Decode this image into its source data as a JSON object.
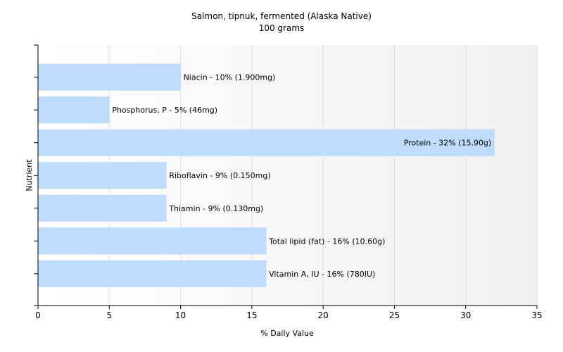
{
  "chart_data": {
    "type": "bar",
    "orientation": "horizontal",
    "title": "Salmon, tipnuk, fermented (Alaska Native)",
    "subtitle": "100 grams",
    "xlabel": "% Daily Value",
    "ylabel": "Nutrient",
    "xlim": [
      0,
      35
    ],
    "xticks": [
      "0",
      "5",
      "10",
      "15",
      "20",
      "25",
      "30",
      "35"
    ],
    "grid": true,
    "legend": "none",
    "categories": [
      "Niacin",
      "Phosphorus, P",
      "Protein",
      "Riboflavin",
      "Thiamin",
      "Total lipid (fat)",
      "Vitamin A, IU"
    ],
    "values": [
      10,
      5,
      32,
      9,
      9,
      16,
      16
    ],
    "labels": [
      "Niacin - 10% (1.900mg)",
      "Phosphorus, P - 5% (46mg)",
      "Protein - 32% (15.90g)",
      "Riboflavin - 9% (0.150mg)",
      "Thiamin - 9% (0.130mg)",
      "Total lipid (fat) - 16% (10.60g)",
      "Vitamin A, IU - 16% (780IU)"
    ],
    "colors": {
      "bar": "#bfdcfc",
      "grid": "#e2e2e2",
      "axis": "#000000",
      "plot_bg_start": "#ffffff",
      "plot_bg_end": "#f0f0f0"
    }
  }
}
